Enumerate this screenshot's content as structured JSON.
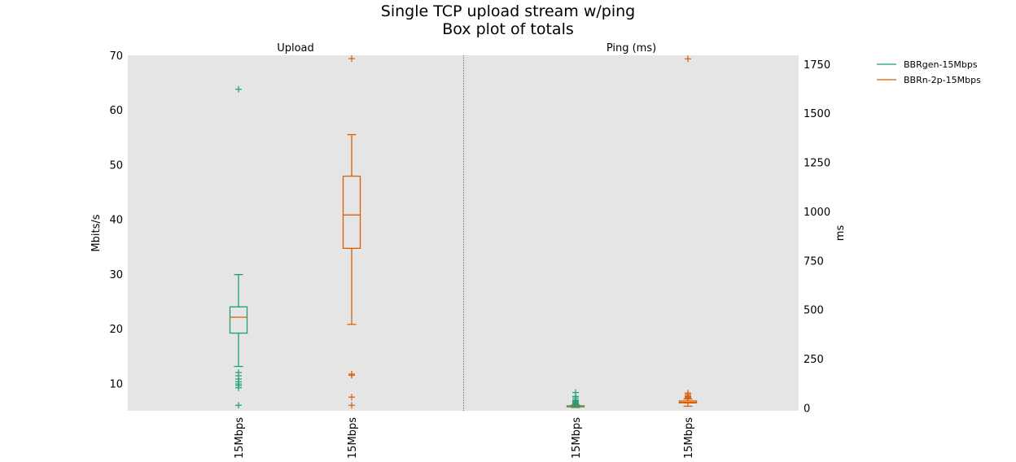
{
  "chart_data": {
    "type": "box",
    "title_line1": "Single TCP upload stream w/ping",
    "title_line2": "Box plot of totals",
    "legend": [
      {
        "name": "BBRgen-15Mbps",
        "color": "#1b9e77"
      },
      {
        "name": "BBRn-2p-15Mbps",
        "color": "#d95f02"
      }
    ],
    "median_color": "#d95f02",
    "panels": [
      {
        "title": "Upload",
        "ylabel": "Mbits/s",
        "axis_side": "left",
        "ylim": [
          5,
          70
        ],
        "yticks": [
          10,
          20,
          30,
          40,
          50,
          60,
          70
        ],
        "boxes": [
          {
            "label": "15Mbps",
            "series": "BBRgen-15Mbps",
            "color": "#1b9e77",
            "whisker_low": 13.1,
            "q1": 19.2,
            "median": 22.1,
            "q3": 24.0,
            "whisker_high": 29.9,
            "fliers": [
              63.8,
              12.0,
              11.4,
              10.8,
              10.3,
              9.9,
              9.6,
              9.2,
              6.0
            ]
          },
          {
            "label": "15Mbps",
            "series": "BBRn-2p-15Mbps",
            "color": "#d95f02",
            "whisker_low": 20.8,
            "q1": 34.7,
            "median": 40.8,
            "q3": 47.9,
            "whisker_high": 55.5,
            "fliers": [
              69.4,
              11.7,
              11.5,
              7.5,
              6.0
            ]
          }
        ]
      },
      {
        "title": "Ping (ms)",
        "ylabel": "ms",
        "axis_side": "right",
        "ylim": [
          -15,
          1795
        ],
        "yticks": [
          0,
          250,
          500,
          750,
          1000,
          1250,
          1500,
          1750
        ],
        "boxes": [
          {
            "label": "15Mbps",
            "series": "BBRgen-15Mbps",
            "color": "#1b9e77",
            "whisker_low": 2,
            "q1": 5,
            "median": 7,
            "q3": 10,
            "whisker_high": 15,
            "fliers": [
              20,
              25,
              30,
              35,
              40,
              50,
              58,
              78
            ]
          },
          {
            "label": "15Mbps",
            "series": "BBRn-2p-15Mbps",
            "color": "#d95f02",
            "whisker_low": 8,
            "q1": 25,
            "median": 28,
            "q3": 35,
            "whisker_high": 45,
            "fliers": [
              50,
              55,
              60,
              68,
              75,
              1777
            ]
          }
        ]
      }
    ]
  }
}
